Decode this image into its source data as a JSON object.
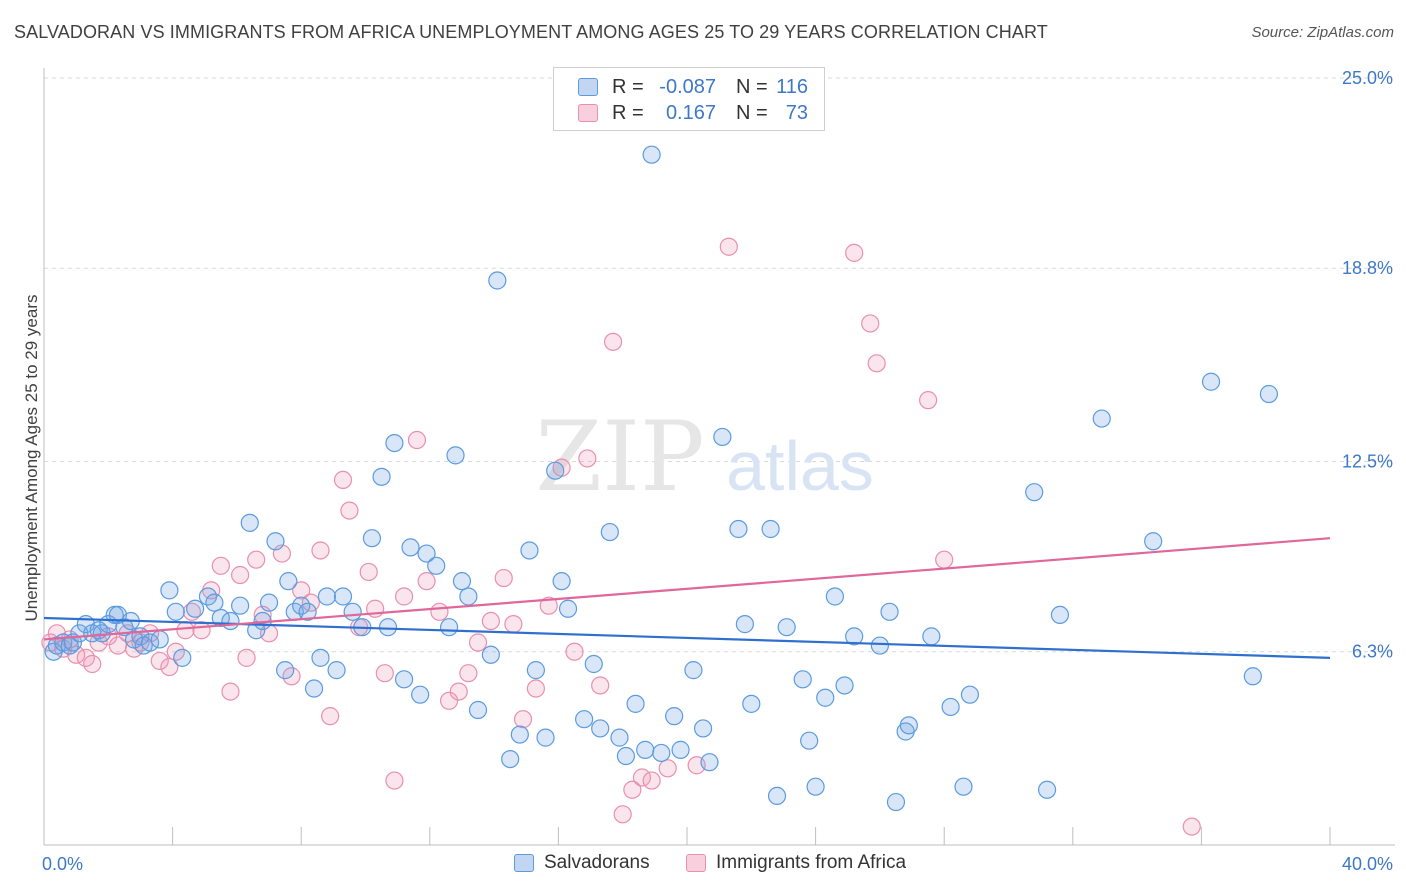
{
  "header": {
    "title": "SALVADORAN VS IMMIGRANTS FROM AFRICA UNEMPLOYMENT AMONG AGES 25 TO 29 YEARS CORRELATION CHART",
    "source": "Source: ZipAtlas.com"
  },
  "watermark": {
    "zip": "ZIP",
    "atlas": "atlas"
  },
  "legend": {
    "rows": [
      {
        "r_label": "R =",
        "r_value": "-0.087",
        "n_label": "N =",
        "n_value": "116"
      },
      {
        "r_label": "R =",
        "r_value": "0.167",
        "n_label": "N =",
        "n_value": "73"
      }
    ]
  },
  "bottom_legend": {
    "series1": "Salvadorans",
    "series2": "Immigrants from Africa"
  },
  "colors": {
    "blue": "#5b9be0",
    "blue_fill": "rgba(120,165,225,0.28)",
    "blue_line": "#2f6fcf",
    "pink": "#e98fb0",
    "pink_fill": "rgba(240,150,180,0.25)",
    "pink_line": "#e0679a",
    "tick": "#3d78c8",
    "grid": "#d9d9d9"
  },
  "chart_data": {
    "type": "scatter",
    "title": "SALVADORAN VS IMMIGRANTS FROM AFRICA UNEMPLOYMENT AMONG AGES 25 TO 29 YEARS CORRELATION CHART",
    "xlabel": "",
    "ylabel": "Unemployment Among Ages 25 to 29 years",
    "xlim": [
      0,
      40
    ],
    "ylim": [
      0,
      25.0
    ],
    "x_tick_labels": [
      "0.0%",
      "40.0%"
    ],
    "y_tick_values": [
      6.3,
      12.5,
      18.8,
      25.0
    ],
    "y_tick_labels": [
      "6.3%",
      "12.5%",
      "18.8%",
      "25.0%"
    ],
    "grid": true,
    "legend_position": "top-center",
    "series": [
      {
        "name": "Salvadorans",
        "r": -0.087,
        "n": 116,
        "trend": {
          "x": [
            0,
            40
          ],
          "y": [
            7.4,
            6.1
          ]
        },
        "points": [
          [
            0.3,
            6.3
          ],
          [
            0.4,
            6.5
          ],
          [
            0.6,
            6.6
          ],
          [
            0.8,
            6.5
          ],
          [
            0.9,
            6.6
          ],
          [
            1.1,
            6.9
          ],
          [
            1.3,
            7.2
          ],
          [
            1.5,
            6.9
          ],
          [
            1.7,
            7.0
          ],
          [
            1.8,
            6.9
          ],
          [
            2.0,
            7.2
          ],
          [
            2.2,
            7.5
          ],
          [
            2.3,
            7.5
          ],
          [
            2.5,
            7.1
          ],
          [
            2.7,
            7.3
          ],
          [
            2.8,
            6.7
          ],
          [
            3.0,
            6.8
          ],
          [
            3.1,
            6.5
          ],
          [
            3.3,
            6.6
          ],
          [
            3.6,
            6.7
          ],
          [
            3.9,
            8.3
          ],
          [
            4.1,
            7.6
          ],
          [
            4.3,
            6.1
          ],
          [
            4.7,
            7.7
          ],
          [
            5.1,
            8.1
          ],
          [
            5.3,
            7.9
          ],
          [
            5.5,
            7.4
          ],
          [
            5.8,
            7.3
          ],
          [
            6.1,
            7.8
          ],
          [
            6.4,
            10.5
          ],
          [
            6.6,
            7.0
          ],
          [
            6.8,
            7.3
          ],
          [
            7.0,
            7.9
          ],
          [
            7.2,
            9.9
          ],
          [
            7.5,
            5.7
          ],
          [
            7.6,
            8.6
          ],
          [
            7.8,
            7.6
          ],
          [
            8.0,
            7.8
          ],
          [
            8.2,
            7.6
          ],
          [
            8.4,
            5.1
          ],
          [
            8.6,
            6.1
          ],
          [
            8.8,
            8.1
          ],
          [
            9.1,
            5.7
          ],
          [
            9.3,
            8.1
          ],
          [
            9.6,
            7.6
          ],
          [
            9.9,
            7.1
          ],
          [
            10.2,
            10.0
          ],
          [
            10.5,
            12.0
          ],
          [
            10.7,
            7.1
          ],
          [
            10.9,
            13.1
          ],
          [
            11.2,
            5.4
          ],
          [
            11.4,
            9.7
          ],
          [
            11.7,
            4.9
          ],
          [
            11.9,
            9.5
          ],
          [
            12.2,
            9.1
          ],
          [
            12.6,
            7.1
          ],
          [
            12.8,
            12.7
          ],
          [
            13.0,
            8.6
          ],
          [
            13.2,
            8.1
          ],
          [
            13.5,
            4.4
          ],
          [
            13.9,
            6.2
          ],
          [
            14.1,
            18.4
          ],
          [
            14.5,
            2.8
          ],
          [
            14.8,
            3.6
          ],
          [
            15.1,
            9.6
          ],
          [
            15.3,
            5.7
          ],
          [
            15.6,
            3.5
          ],
          [
            15.9,
            12.2
          ],
          [
            16.1,
            8.6
          ],
          [
            16.3,
            7.7
          ],
          [
            16.8,
            4.1
          ],
          [
            17.1,
            5.9
          ],
          [
            17.3,
            3.8
          ],
          [
            17.6,
            10.2
          ],
          [
            17.9,
            3.5
          ],
          [
            18.1,
            2.9
          ],
          [
            18.4,
            4.6
          ],
          [
            18.7,
            3.1
          ],
          [
            18.9,
            22.5
          ],
          [
            19.2,
            3.0
          ],
          [
            19.6,
            4.2
          ],
          [
            19.8,
            3.1
          ],
          [
            20.2,
            5.7
          ],
          [
            20.5,
            3.8
          ],
          [
            20.7,
            2.7
          ],
          [
            21.1,
            13.3
          ],
          [
            21.6,
            10.3
          ],
          [
            21.8,
            7.2
          ],
          [
            22.0,
            4.6
          ],
          [
            22.6,
            10.3
          ],
          [
            22.8,
            1.6
          ],
          [
            23.1,
            7.1
          ],
          [
            23.6,
            5.4
          ],
          [
            23.8,
            3.4
          ],
          [
            24.0,
            1.9
          ],
          [
            24.3,
            4.8
          ],
          [
            24.6,
            8.1
          ],
          [
            24.9,
            5.2
          ],
          [
            25.2,
            6.8
          ],
          [
            26.0,
            6.5
          ],
          [
            26.3,
            7.6
          ],
          [
            26.5,
            1.4
          ],
          [
            26.8,
            3.7
          ],
          [
            26.9,
            3.9
          ],
          [
            27.6,
            6.8
          ],
          [
            28.2,
            4.5
          ],
          [
            28.6,
            1.9
          ],
          [
            28.8,
            4.9
          ],
          [
            30.8,
            11.5
          ],
          [
            31.2,
            1.8
          ],
          [
            31.6,
            7.5
          ],
          [
            32.9,
            13.9
          ],
          [
            34.5,
            9.9
          ],
          [
            36.3,
            15.1
          ],
          [
            37.6,
            5.5
          ],
          [
            38.1,
            14.7
          ]
        ]
      },
      {
        "name": "Immigrants from Africa",
        "r": 0.167,
        "n": 73,
        "trend": {
          "x": [
            0,
            40
          ],
          "y": [
            6.7,
            10.0
          ]
        },
        "points": [
          [
            0.2,
            6.6
          ],
          [
            0.4,
            6.9
          ],
          [
            0.6,
            6.4
          ],
          [
            0.8,
            6.7
          ],
          [
            1.0,
            6.2
          ],
          [
            1.3,
            6.1
          ],
          [
            1.5,
            5.9
          ],
          [
            1.7,
            6.6
          ],
          [
            2.0,
            6.8
          ],
          [
            2.3,
            6.5
          ],
          [
            2.6,
            6.9
          ],
          [
            2.8,
            6.4
          ],
          [
            3.0,
            6.6
          ],
          [
            3.3,
            6.9
          ],
          [
            3.6,
            6.0
          ],
          [
            3.9,
            5.8
          ],
          [
            4.1,
            6.3
          ],
          [
            4.4,
            7.0
          ],
          [
            4.6,
            7.6
          ],
          [
            4.9,
            7.0
          ],
          [
            5.2,
            8.3
          ],
          [
            5.5,
            9.1
          ],
          [
            5.8,
            5.0
          ],
          [
            6.1,
            8.8
          ],
          [
            6.3,
            6.1
          ],
          [
            6.6,
            9.3
          ],
          [
            6.8,
            7.5
          ],
          [
            7.0,
            6.9
          ],
          [
            7.4,
            9.5
          ],
          [
            7.7,
            5.5
          ],
          [
            8.0,
            8.3
          ],
          [
            8.3,
            7.9
          ],
          [
            8.6,
            9.6
          ],
          [
            8.9,
            4.2
          ],
          [
            9.3,
            11.9
          ],
          [
            9.5,
            10.9
          ],
          [
            9.8,
            7.1
          ],
          [
            10.1,
            8.9
          ],
          [
            10.3,
            7.7
          ],
          [
            10.6,
            5.6
          ],
          [
            10.9,
            2.1
          ],
          [
            11.2,
            8.1
          ],
          [
            11.6,
            13.2
          ],
          [
            11.9,
            8.6
          ],
          [
            12.3,
            7.6
          ],
          [
            12.6,
            4.7
          ],
          [
            12.9,
            5.0
          ],
          [
            13.2,
            5.6
          ],
          [
            13.5,
            6.6
          ],
          [
            13.9,
            7.3
          ],
          [
            14.3,
            8.7
          ],
          [
            14.6,
            7.2
          ],
          [
            14.9,
            4.1
          ],
          [
            15.3,
            5.1
          ],
          [
            15.7,
            7.8
          ],
          [
            16.1,
            12.3
          ],
          [
            16.5,
            6.3
          ],
          [
            16.9,
            12.6
          ],
          [
            17.3,
            5.2
          ],
          [
            17.7,
            16.4
          ],
          [
            18.0,
            1.0
          ],
          [
            18.3,
            1.8
          ],
          [
            18.6,
            2.2
          ],
          [
            18.9,
            2.1
          ],
          [
            19.4,
            2.5
          ],
          [
            20.3,
            2.6
          ],
          [
            21.3,
            19.5
          ],
          [
            25.2,
            19.3
          ],
          [
            25.7,
            17.0
          ],
          [
            25.9,
            15.7
          ],
          [
            27.5,
            14.5
          ],
          [
            28.0,
            9.3
          ],
          [
            35.7,
            0.6
          ]
        ]
      }
    ]
  }
}
